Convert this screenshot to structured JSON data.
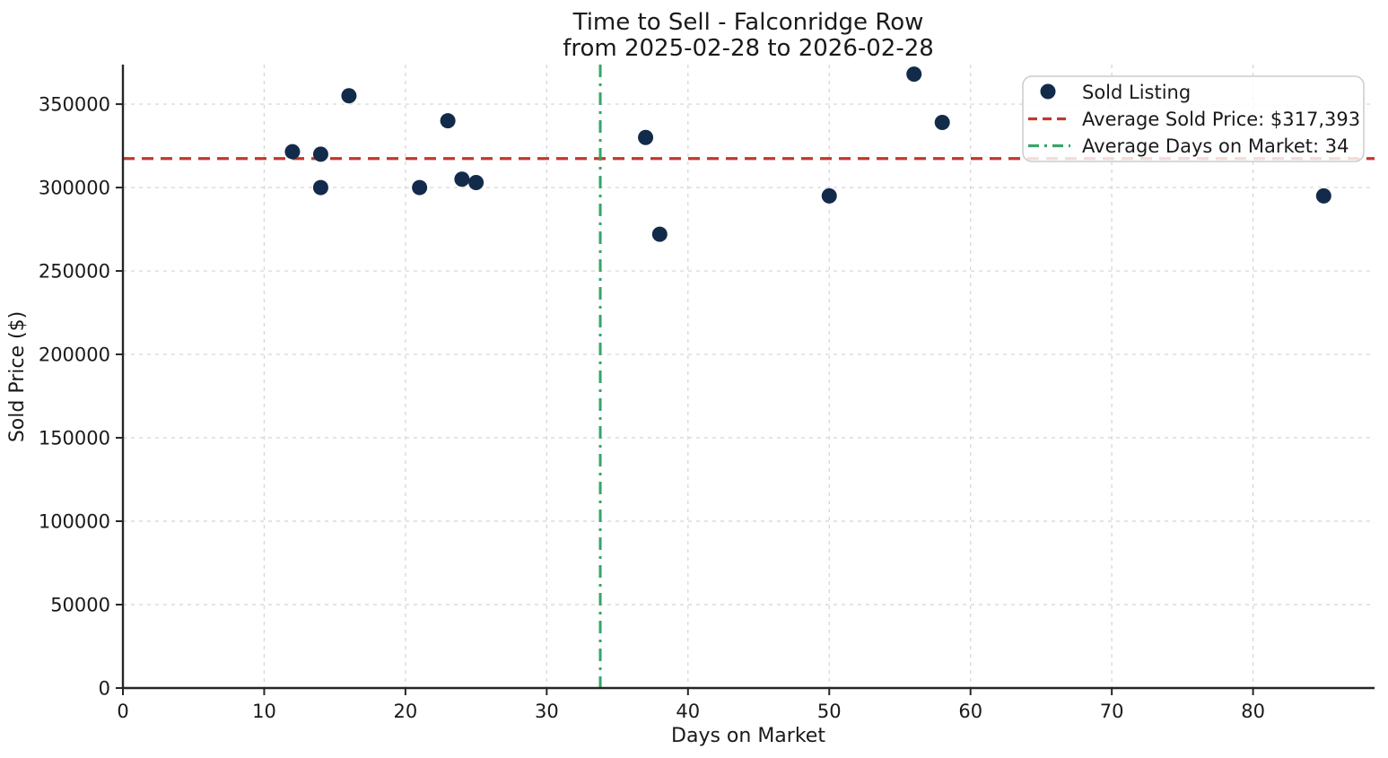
{
  "chart_data": {
    "type": "scatter",
    "title": "Time to Sell - Falconridge Row",
    "subtitle": "from 2025-02-28 to 2026-02-28",
    "xlabel": "Days on Market",
    "ylabel": "Sold Price ($)",
    "xlim": [
      0,
      88.6
    ],
    "ylim": [
      0,
      373700
    ],
    "xticks": [
      0,
      10,
      20,
      30,
      40,
      50,
      60,
      70,
      80
    ],
    "yticks": [
      0,
      50000,
      100000,
      150000,
      200000,
      250000,
      300000,
      350000
    ],
    "grid": true,
    "legend_position": "upper right",
    "series": [
      {
        "name": "Sold Listing",
        "marker": "circle",
        "color": "#132b4a",
        "points": [
          {
            "days_on_market": 12,
            "sold_price": 321500
          },
          {
            "days_on_market": 14,
            "sold_price": 320000
          },
          {
            "days_on_market": 14,
            "sold_price": 300000
          },
          {
            "days_on_market": 16,
            "sold_price": 355000
          },
          {
            "days_on_market": 21,
            "sold_price": 300000
          },
          {
            "days_on_market": 23,
            "sold_price": 340000
          },
          {
            "days_on_market": 24,
            "sold_price": 305000
          },
          {
            "days_on_market": 25,
            "sold_price": 303000
          },
          {
            "days_on_market": 37,
            "sold_price": 330000
          },
          {
            "days_on_market": 38,
            "sold_price": 272000
          },
          {
            "days_on_market": 50,
            "sold_price": 295000
          },
          {
            "days_on_market": 56,
            "sold_price": 368000
          },
          {
            "days_on_market": 58,
            "sold_price": 339000
          },
          {
            "days_on_market": 85,
            "sold_price": 295000
          }
        ]
      }
    ],
    "reference_lines": {
      "avg_sold_price": {
        "value": 317393,
        "orientation": "horizontal",
        "style": "dashed",
        "color": "#c0392b",
        "label": "Average Sold Price: $317,393"
      },
      "avg_days_on_market": {
        "value": 33.79,
        "display_value": 34,
        "orientation": "vertical",
        "style": "dashdot",
        "color": "#36a567",
        "label": "Average Days on Market: 34"
      }
    },
    "legend": {
      "sold_listing_label": "Sold Listing",
      "avg_price_label": "Average Sold Price: $317,393",
      "avg_days_label": "Average Days on Market: 34"
    },
    "colors": {
      "point": "#132b4a",
      "avg_price_line": "#c0392b",
      "avg_days_line": "#36a567",
      "grid": "#d3d3d3",
      "spine": "#262626",
      "legend_border": "#cccccc"
    }
  }
}
